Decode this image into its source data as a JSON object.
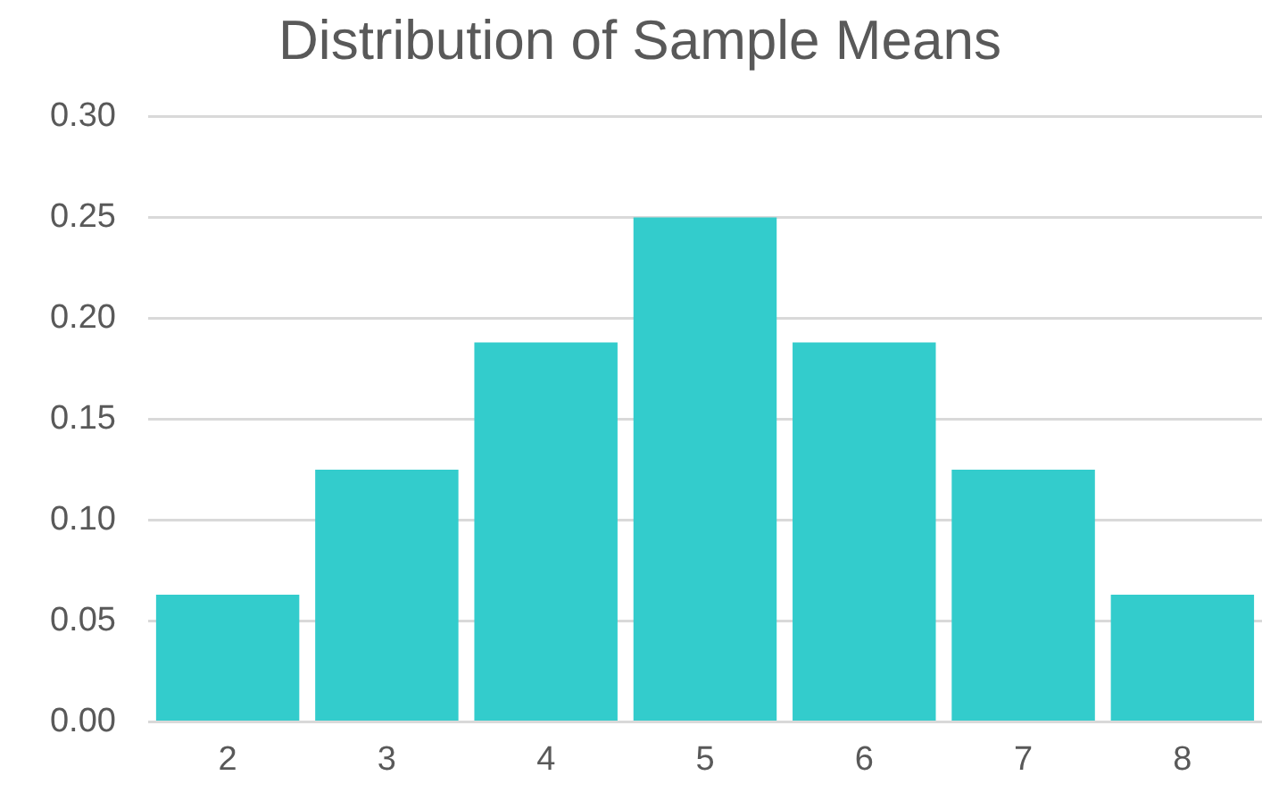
{
  "chart_data": {
    "type": "bar",
    "title": "Distribution of Sample Means",
    "categories": [
      "2",
      "3",
      "4",
      "5",
      "6",
      "7",
      "8"
    ],
    "values": [
      0.063,
      0.125,
      0.188,
      0.25,
      0.188,
      0.125,
      0.063
    ],
    "color": "#33cccc",
    "ylim": [
      0,
      0.3
    ],
    "yticks": [
      {
        "value": 0,
        "label": "0.00"
      },
      {
        "value": 0.05,
        "label": "0.05"
      },
      {
        "value": 0.1,
        "label": "0.10"
      },
      {
        "value": 0.15,
        "label": "0.15"
      },
      {
        "value": 0.2,
        "label": "0.20"
      },
      {
        "value": 0.25,
        "label": "0.25"
      },
      {
        "value": 0.3,
        "label": "0.30"
      }
    ],
    "grid": "y",
    "legend": false
  }
}
